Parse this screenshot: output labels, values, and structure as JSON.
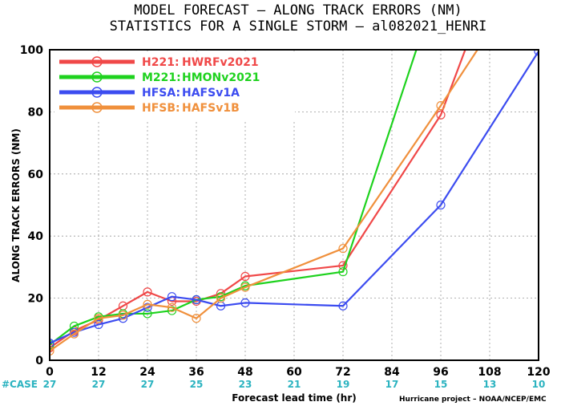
{
  "chart_data": {
    "type": "line",
    "title_line1": "MODEL FORECAST – ALONG TRACK ERRORS (NM)",
    "title_line2": "STATISTICS FOR A SINGLE STORM – al082021_HENRI",
    "ylabel": "ALONG TRACK ERRORS (NM)",
    "xlabel": "Forecast lead time (hr)",
    "xlim": [
      0,
      120
    ],
    "ylim": [
      0,
      100
    ],
    "x_ticks": [
      "0",
      "12",
      "24",
      "36",
      "48",
      "60",
      "72",
      "84",
      "96",
      "108",
      "120"
    ],
    "y_ticks": [
      "0",
      "20",
      "40",
      "60",
      "80",
      "100"
    ],
    "case_label": "#CASE",
    "case_counts": [
      "27",
      "27",
      "27",
      "25",
      "23",
      "21",
      "19",
      "17",
      "15",
      "13",
      "10"
    ],
    "credit": "Hurricane project – NOAA/NCEP/EMC",
    "series": [
      {
        "code": "H221:",
        "name": "HWRFv2021",
        "color": "#f04848",
        "x": [
          0,
          6,
          12,
          18,
          24,
          30,
          36,
          42,
          48,
          72,
          96,
          102
        ],
        "y": [
          4,
          9.5,
          13,
          17.5,
          22,
          19,
          19,
          21.5,
          27,
          30.5,
          79,
          100
        ]
      },
      {
        "code": "M221:",
        "name": "HMONv2021",
        "color": "#1ed21e",
        "x": [
          0,
          6,
          12,
          18,
          24,
          30,
          36,
          42,
          48,
          72,
          90
        ],
        "y": [
          5,
          11,
          14,
          15,
          15,
          16,
          19.5,
          20.5,
          24,
          28.5,
          100
        ]
      },
      {
        "code": "HFSA:",
        "name": "HAFSv1A",
        "color": "#3c4cf0",
        "x": [
          0,
          6,
          12,
          18,
          24,
          30,
          36,
          42,
          48,
          72,
          96,
          120
        ],
        "y": [
          5.5,
          9,
          11.5,
          13.5,
          17,
          20.5,
          19.5,
          17.5,
          18.5,
          17.5,
          50,
          99.5
        ]
      },
      {
        "code": "HFSB:",
        "name": "HAFSv1B",
        "color": "#f0903c",
        "x": [
          0,
          6,
          12,
          18,
          24,
          30,
          36,
          42,
          48,
          72,
          96,
          105
        ],
        "y": [
          3,
          8.5,
          13.5,
          14.5,
          18,
          17,
          13.5,
          20,
          23.5,
          36,
          82,
          100
        ]
      }
    ]
  }
}
